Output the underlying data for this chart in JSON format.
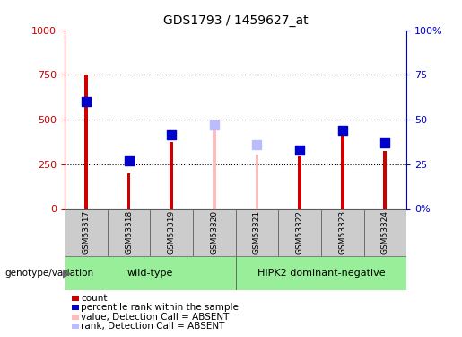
{
  "title": "GDS1793 / 1459627_at",
  "samples": [
    "GSM53317",
    "GSM53318",
    "GSM53319",
    "GSM53320",
    "GSM53321",
    "GSM53322",
    "GSM53323",
    "GSM53324"
  ],
  "count_values": [
    750,
    200,
    375,
    0,
    0,
    295,
    420,
    325
  ],
  "rank_values": [
    600,
    270,
    415,
    0,
    0,
    330,
    440,
    370
  ],
  "absent_value_values": [
    0,
    0,
    0,
    450,
    305,
    0,
    0,
    0
  ],
  "absent_rank_values": [
    0,
    0,
    0,
    470,
    360,
    0,
    0,
    0
  ],
  "absent_mask": [
    false,
    false,
    false,
    true,
    true,
    false,
    false,
    false
  ],
  "group1_label": "wild-type",
  "group2_label": "HIPK2 dominant-negative",
  "group1_indices": [
    0,
    1,
    2,
    3
  ],
  "group2_indices": [
    4,
    5,
    6,
    7
  ],
  "ylim_left": [
    0,
    1000
  ],
  "ylim_right": [
    0,
    100
  ],
  "yticks_left": [
    0,
    250,
    500,
    750,
    1000
  ],
  "ytick_labels_left": [
    "0",
    "250",
    "500",
    "750",
    "1000"
  ],
  "yticks_right": [
    0,
    25,
    50,
    75,
    100
  ],
  "ytick_labels_right": [
    "0%",
    "25",
    "50",
    "75",
    "100%"
  ],
  "color_count": "#cc0000",
  "color_rank": "#0000cc",
  "color_absent_value": "#ffbbbb",
  "color_absent_rank": "#bbbbff",
  "bar_width": 0.08,
  "rank_marker_size": 60,
  "background_color": "#ffffff",
  "plot_bg_color": "#ffffff",
  "legend_items": [
    {
      "label": "count",
      "color": "#cc0000"
    },
    {
      "label": "percentile rank within the sample",
      "color": "#0000cc"
    },
    {
      "label": "value, Detection Call = ABSENT",
      "color": "#ffbbbb"
    },
    {
      "label": "rank, Detection Call = ABSENT",
      "color": "#bbbbff"
    }
  ],
  "group_bg_color": "#99ee99",
  "label_area_color": "#cccccc",
  "fig_width": 5.15,
  "fig_height": 3.75,
  "dpi": 100
}
